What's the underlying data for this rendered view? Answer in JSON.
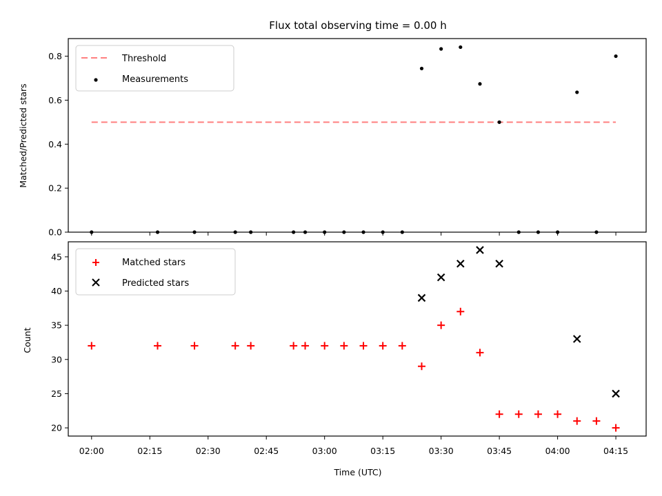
{
  "chart_data": [
    {
      "type": "scatter",
      "title": "Flux total observing time = 0.00 h",
      "xlabel": "",
      "ylabel": "Matched/Predicted stars",
      "ylim": [
        0,
        0.88
      ],
      "yticks": [
        0.0,
        0.2,
        0.4,
        0.6,
        0.8
      ],
      "ytick_labels": [
        "0.0",
        "0.2",
        "0.4",
        "0.6",
        "0.8"
      ],
      "legend": {
        "position": "top-left",
        "entries": [
          "Threshold",
          "Measurements"
        ]
      },
      "series": [
        {
          "name": "Threshold",
          "style": "dashed-line",
          "color": "#ff7f7f",
          "x": [
            2.0,
            4.25
          ],
          "y": [
            0.5,
            0.5
          ]
        },
        {
          "name": "Measurements",
          "style": "dot",
          "color": "#000000",
          "x": [
            2.0,
            2.2833,
            2.4417,
            2.6167,
            2.6833,
            2.8667,
            2.9167,
            3.0,
            3.0833,
            3.1667,
            3.25,
            3.3333,
            3.4167,
            3.5,
            3.5833,
            3.6667,
            3.75,
            3.8333,
            3.9167,
            4.0,
            4.0833,
            4.1667,
            4.25
          ],
          "y": [
            0,
            0,
            0,
            0,
            0,
            0,
            0,
            0,
            0,
            0,
            0,
            0,
            0.744,
            0.833,
            0.841,
            0.674,
            0.5,
            0,
            0,
            0,
            0.636,
            0,
            0.8
          ]
        }
      ]
    },
    {
      "type": "scatter",
      "title": "",
      "xlabel": "Time (UTC)",
      "ylabel": "Count",
      "ylim": [
        18.8,
        47.2
      ],
      "yticks": [
        20,
        25,
        30,
        35,
        40,
        45
      ],
      "ytick_labels": [
        "20",
        "25",
        "30",
        "35",
        "40",
        "45"
      ],
      "xlim": [
        1.9,
        4.38
      ],
      "xticks": [
        2.0,
        2.25,
        2.5,
        2.75,
        3.0,
        3.25,
        3.5,
        3.75,
        4.0,
        4.25
      ],
      "xtick_labels": [
        "02:00",
        "02:15",
        "02:30",
        "02:45",
        "03:00",
        "03:15",
        "03:30",
        "03:45",
        "04:00",
        "04:15"
      ],
      "legend": {
        "position": "top-left",
        "entries": [
          "Matched stars",
          "Predicted stars"
        ]
      },
      "series": [
        {
          "name": "Matched stars",
          "marker": "plus",
          "color": "#ff0000",
          "x": [
            2.0,
            2.2833,
            2.4417,
            2.6167,
            2.6833,
            2.8667,
            2.9167,
            3.0,
            3.0833,
            3.1667,
            3.25,
            3.3333,
            3.4167,
            3.5,
            3.5833,
            3.6667,
            3.75,
            3.8333,
            3.9167,
            4.0,
            4.0833,
            4.1667,
            4.25
          ],
          "y": [
            32,
            32,
            32,
            32,
            32,
            32,
            32,
            32,
            32,
            32,
            32,
            32,
            29,
            35,
            37,
            31,
            22,
            22,
            22,
            22,
            21,
            21,
            20
          ]
        },
        {
          "name": "Predicted stars",
          "marker": "x",
          "color": "#000000",
          "x": [
            3.4167,
            3.5,
            3.5833,
            3.6667,
            3.75,
            4.0833,
            4.25
          ],
          "y": [
            39,
            42,
            44,
            46,
            44,
            33,
            25
          ]
        }
      ]
    }
  ]
}
